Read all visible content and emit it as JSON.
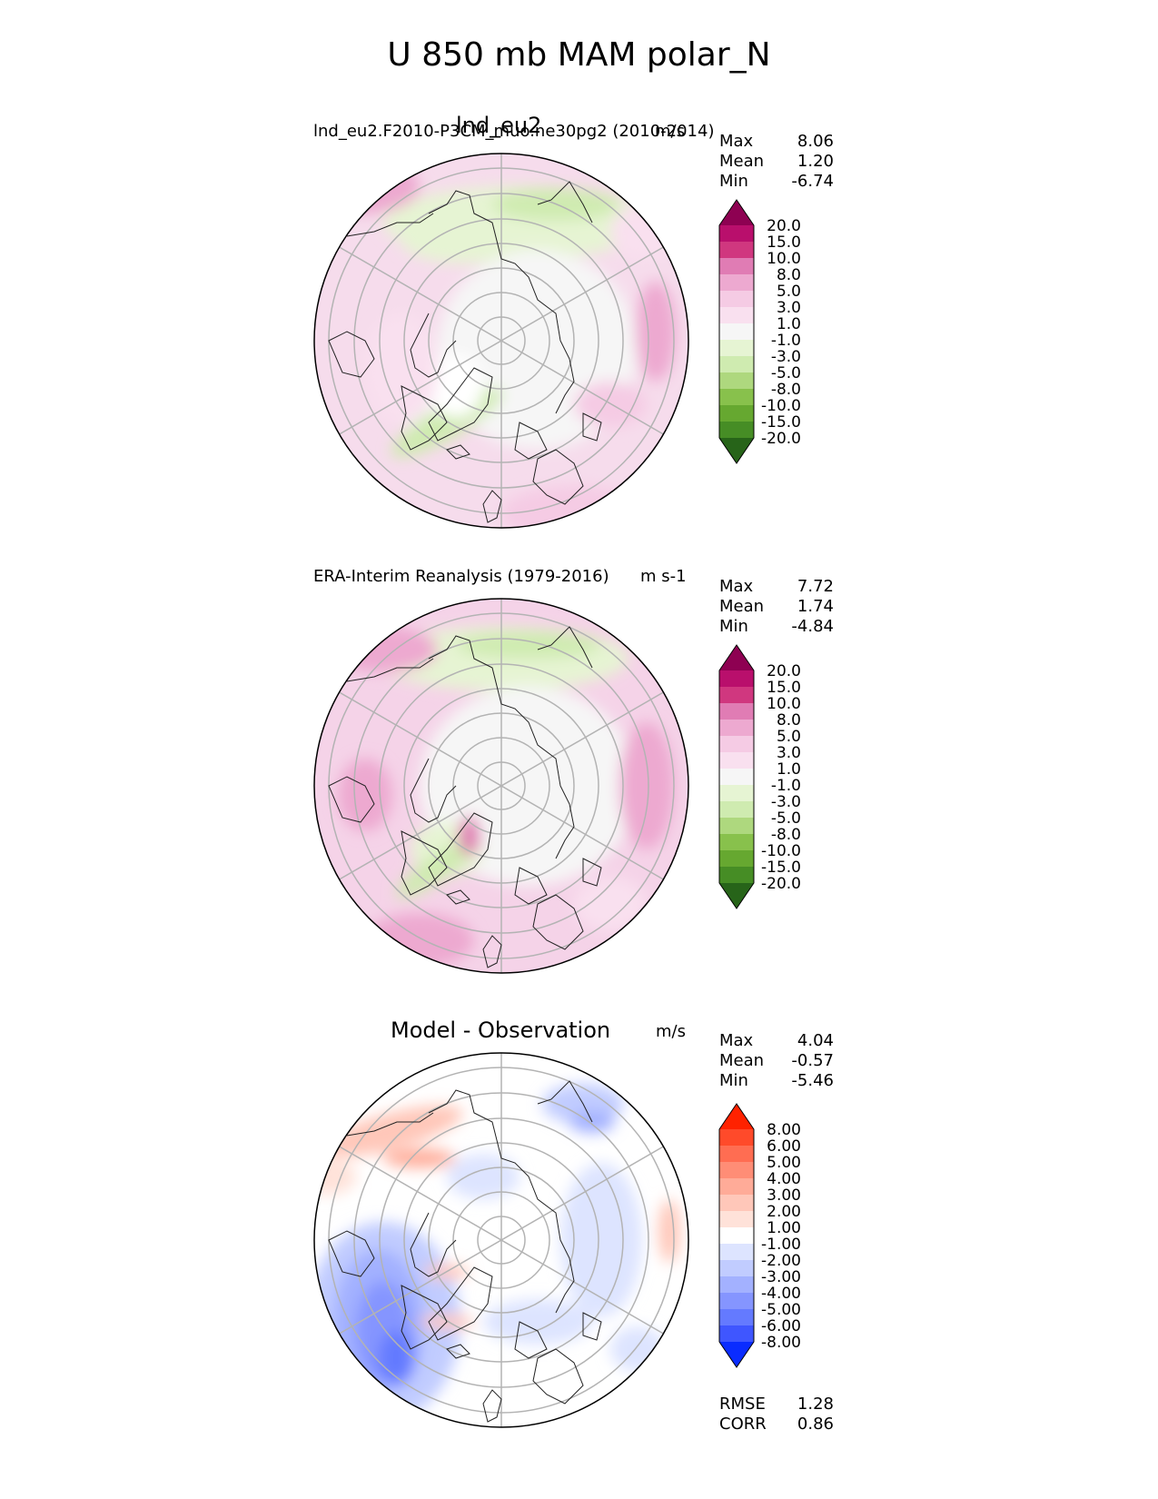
{
  "title": "U 850 mb MAM polar_N",
  "chart_data": [
    {
      "type": "heatmap",
      "projection": "north polar stereographic",
      "title": "lnd_eu2",
      "subtitle": "lnd_eu2.F2010-P3CM_muo.ne30pg2 (2010-2014)",
      "units": "m/s",
      "stats": [
        {
          "label": "Max",
          "value": "8.06"
        },
        {
          "label": "Mean",
          "value": "1.20"
        },
        {
          "label": "Min",
          "value": "-6.74"
        }
      ],
      "colorbar": {
        "levels": [
          "20.0",
          "15.0",
          "10.0",
          "8.0",
          "5.0",
          "3.0",
          "1.0",
          "-1.0",
          "-3.0",
          "-5.0",
          "-8.0",
          "-10.0",
          "-15.0",
          "-20.0"
        ],
        "colors": [
          "#8e0152",
          "#b90f6c",
          "#d0377f",
          "#e07cb4",
          "#eda9d0",
          "#f5cbe4",
          "#f9e0ef",
          "#f6f6f6",
          "#e6f4d3",
          "#cfebb0",
          "#aed87e",
          "#88c14c",
          "#66a830",
          "#468d25",
          "#276419"
        ],
        "extend": "both"
      }
    },
    {
      "type": "heatmap",
      "projection": "north polar stereographic",
      "title": "",
      "subtitle": "ERA-Interim Reanalysis (1979-2016)",
      "units": "m s-1",
      "stats": [
        {
          "label": "Max",
          "value": "7.72"
        },
        {
          "label": "Mean",
          "value": "1.74"
        },
        {
          "label": "Min",
          "value": "-4.84"
        }
      ],
      "colorbar": {
        "levels": [
          "20.0",
          "15.0",
          "10.0",
          "8.0",
          "5.0",
          "3.0",
          "1.0",
          "-1.0",
          "-3.0",
          "-5.0",
          "-8.0",
          "-10.0",
          "-15.0",
          "-20.0"
        ],
        "colors": [
          "#8e0152",
          "#b90f6c",
          "#d0377f",
          "#e07cb4",
          "#eda9d0",
          "#f5cbe4",
          "#f9e0ef",
          "#f6f6f6",
          "#e6f4d3",
          "#cfebb0",
          "#aed87e",
          "#88c14c",
          "#66a830",
          "#468d25",
          "#276419"
        ],
        "extend": "both"
      }
    },
    {
      "type": "heatmap",
      "projection": "north polar stereographic",
      "title": "Model - Observation",
      "subtitle": "",
      "units": "m/s",
      "stats": [
        {
          "label": "Max",
          "value": "4.04"
        },
        {
          "label": "Mean",
          "value": "-0.57"
        },
        {
          "label": "Min",
          "value": "-5.46"
        }
      ],
      "extra_stats": [
        {
          "label": "RMSE",
          "value": "1.28"
        },
        {
          "label": "CORR",
          "value": "0.86"
        }
      ],
      "colorbar": {
        "levels": [
          "8.00",
          "6.00",
          "5.00",
          "4.00",
          "3.00",
          "2.00",
          "1.00",
          "-1.00",
          "-2.00",
          "-3.00",
          "-4.00",
          "-5.00",
          "-6.00",
          "-8.00"
        ],
        "colors": [
          "#ff2200",
          "#ff4a2a",
          "#ff6d52",
          "#ff8d76",
          "#ffab98",
          "#ffc7b9",
          "#ffe2d9",
          "#ffffff",
          "#dde4ff",
          "#c1ccff",
          "#a3b1ff",
          "#8595ff",
          "#647aff",
          "#3f56ff",
          "#0a2cff"
        ],
        "extend": "both"
      }
    }
  ]
}
